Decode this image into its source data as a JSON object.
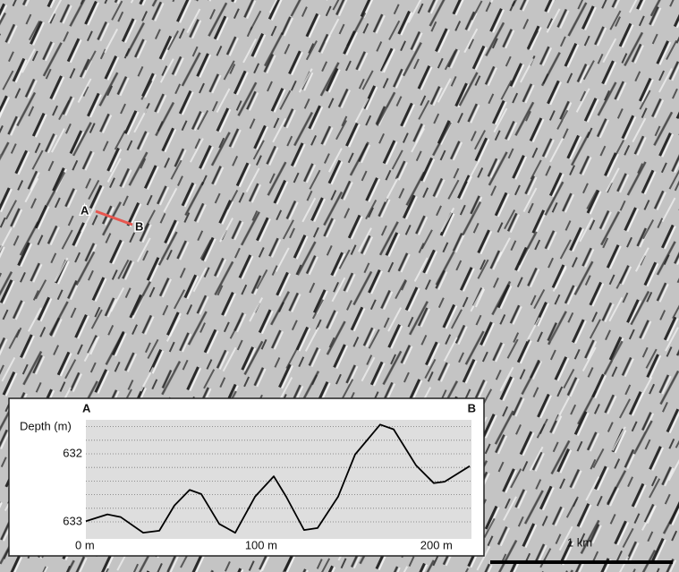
{
  "map": {
    "labels": {
      "a": "A",
      "b": "B"
    },
    "scale_bar": "1 km"
  },
  "chart_data": {
    "type": "line",
    "point_labels": [
      "A",
      "B"
    ],
    "ylabel": "Depth (m)",
    "x": [
      0,
      12.3,
      19.9,
      32.7,
      41.9,
      50.5,
      59.2,
      65.8,
      76.1,
      85.2,
      96.5,
      107.2,
      114.3,
      124.5,
      132.2,
      143.9,
      153.6,
      167.9,
      175.6,
      188.4,
      198.5,
      204.7,
      219
    ],
    "series": [
      {
        "color": "#000000",
        "values": [
          632.99,
          632.89,
          632.93,
          633.16,
          633.13,
          632.76,
          632.53,
          632.59,
          633.03,
          633.16,
          632.63,
          632.33,
          632.63,
          633.12,
          633.09,
          632.63,
          632.01,
          631.57,
          631.64,
          632.17,
          632.43,
          632.41,
          632.18
        ]
      }
    ],
    "xlim": [
      0,
      220
    ],
    "xticks": [
      {
        "value": 0,
        "label": "0 m"
      },
      {
        "value": 100,
        "label": "100 m"
      },
      {
        "value": 200,
        "label": "200 m"
      }
    ],
    "ylim": [
      631.5,
      633.25
    ],
    "y_inverted": true,
    "yticks": [
      632,
      633
    ],
    "grid_lines": [
      631.6,
      631.8,
      632,
      632.2,
      632.4,
      632.6,
      632.8,
      633
    ],
    "grid": true
  }
}
